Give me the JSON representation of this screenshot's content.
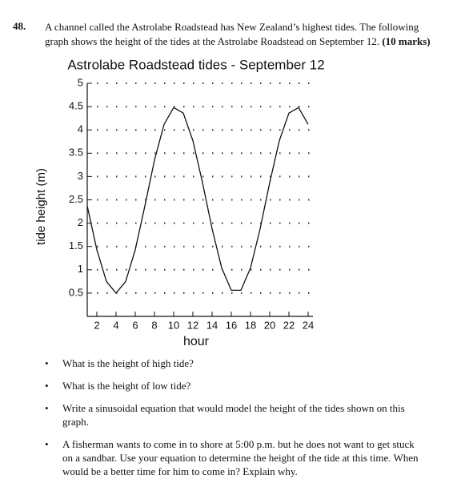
{
  "question": {
    "number": "48.",
    "text": "A channel called the Astrolabe Roadstead has New Zealand’s highest tides. The following graph shows the height of the tides at the Astrolabe Roadstead on September 12.",
    "marks": "(10 marks)",
    "bullets": [
      "What is the height of high tide?",
      "What is the height of low tide?",
      "Write a sinusoidal equation that would model the height of the tides shown on this graph.",
      "A fisherman wants to come in to shore at 5:00 p.m. but he does not want to get stuck on a sandbar. Use your equation to determine the height of the tide at this time. When would be a better time for him to come in? Explain why."
    ]
  },
  "chart_data": {
    "type": "line",
    "title": "Astrolabe Roadstead tides - September 12",
    "x_label": "hour",
    "y_label": "tide height (m)",
    "x": [
      1,
      2,
      3,
      4,
      5,
      6,
      7,
      8,
      9,
      10,
      11,
      12,
      13,
      14,
      15,
      16,
      17,
      18,
      19,
      20,
      21,
      22,
      23,
      24
    ],
    "values": [
      2.37,
      1.43,
      0.75,
      0.5,
      0.75,
      1.43,
      2.37,
      3.35,
      4.12,
      4.48,
      4.36,
      3.77,
      2.87,
      1.88,
      1.04,
      0.56,
      0.56,
      1.04,
      1.88,
      2.87,
      3.77,
      4.36,
      4.48,
      4.12
    ],
    "color": "#111111",
    "xlim": [
      1,
      24.5
    ],
    "xticks": [
      2,
      4,
      6,
      8,
      10,
      12,
      14,
      16,
      18,
      20,
      22,
      24
    ],
    "ylim": [
      0,
      5
    ],
    "yticks": [
      0.5,
      1,
      1.5,
      2,
      2.5,
      3,
      3.5,
      4,
      4.5,
      5
    ],
    "grid": true
  }
}
